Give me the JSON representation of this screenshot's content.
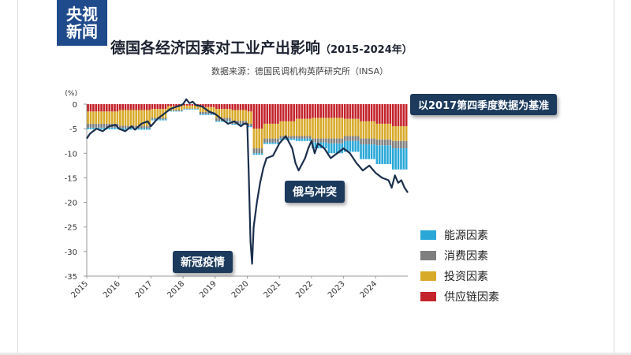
{
  "header": {
    "logo_line1": "央视",
    "logo_line2": "新闻",
    "title_main": "德国各经济因素对工业产出影响",
    "title_years": "（2015-2024年）",
    "source": "数据来源：德国民调机构英萨研究所（INSA）"
  },
  "annotations": {
    "base_note": "以2017第四季度数据为基准",
    "covid": "新冠疫情",
    "ukraine": "俄乌冲突"
  },
  "colors": {
    "energy": "#29a8d8",
    "consumption": "#7f7f7f",
    "investment": "#d8aa2a",
    "supply": "#c4232b",
    "line": "#1b2f4d",
    "callout": "#1b3a5c",
    "logo": "#1f4a8c"
  },
  "chart_data": {
    "type": "bar",
    "unit_label": "(%)",
    "ylim": [
      -35,
      0
    ],
    "yticks": [
      0,
      -5,
      -10,
      -15,
      -20,
      -25,
      -30,
      -35
    ],
    "xlim": [
      2015,
      2025
    ],
    "xticks": [
      "2015",
      "2016",
      "2017",
      "2018",
      "2019",
      "2020",
      "2021",
      "2022",
      "2023",
      "2024"
    ],
    "legend": [
      {
        "name": "能源因素",
        "color": "#29a8d8"
      },
      {
        "name": "消费因素",
        "color": "#7f7f7f"
      },
      {
        "name": "投资因素",
        "color": "#d8aa2a"
      },
      {
        "name": "供应链因素",
        "color": "#c4232b"
      }
    ],
    "legend_position": "bottom-right",
    "stacks": [
      {
        "from": 2015.0,
        "to": 2016.0,
        "supply": 1.5,
        "investment": 2.5,
        "consumption": 0.8,
        "energy": 0.3
      },
      {
        "from": 2016.0,
        "to": 2017.0,
        "supply": 1.2,
        "investment": 3.2,
        "consumption": 0.5,
        "energy": 0.3
      },
      {
        "from": 2017.0,
        "to": 2017.5,
        "supply": 1.0,
        "investment": 1.8,
        "consumption": 0.3,
        "energy": 0.2
      },
      {
        "from": 2017.5,
        "to": 2018.0,
        "supply": 0.4,
        "investment": 0.8,
        "consumption": 0.2,
        "energy": 0.1
      },
      {
        "from": 2018.0,
        "to": 2018.5,
        "supply": 0.3,
        "investment": 0.6,
        "consumption": 0.1,
        "energy": 0.1
      },
      {
        "from": 2018.5,
        "to": 2019.0,
        "supply": 0.6,
        "investment": 1.0,
        "consumption": 0.4,
        "energy": 0.2
      },
      {
        "from": 2019.0,
        "to": 2019.5,
        "supply": 1.0,
        "investment": 1.8,
        "consumption": 0.6,
        "energy": 0.2
      },
      {
        "from": 2019.5,
        "to": 2020.0,
        "supply": 1.2,
        "investment": 2.2,
        "consumption": 0.6,
        "energy": 0.2
      },
      {
        "from": 2020.0,
        "to": 2020.2,
        "supply": 1.5,
        "investment": 2.5,
        "consumption": 0.5,
        "energy": 0.2
      },
      {
        "from": 2020.2,
        "to": 2020.5,
        "supply": 5.0,
        "investment": 4.0,
        "consumption": 1.0,
        "energy": 0.3
      },
      {
        "from": 2020.5,
        "to": 2021.0,
        "supply": 4.0,
        "investment": 3.0,
        "consumption": 0.8,
        "energy": 0.3
      },
      {
        "from": 2021.0,
        "to": 2021.5,
        "supply": 3.5,
        "investment": 3.0,
        "consumption": 0.5,
        "energy": 0.3
      },
      {
        "from": 2021.5,
        "to": 2022.0,
        "supply": 3.0,
        "investment": 3.5,
        "consumption": 0.5,
        "energy": 0.5
      },
      {
        "from": 2022.0,
        "to": 2022.5,
        "supply": 2.8,
        "investment": 4.2,
        "consumption": 0.8,
        "energy": 1.2
      },
      {
        "from": 2022.5,
        "to": 2023.0,
        "supply": 2.8,
        "investment": 4.2,
        "consumption": 1.0,
        "energy": 2.0
      },
      {
        "from": 2023.0,
        "to": 2023.5,
        "supply": 3.0,
        "investment": 3.5,
        "consumption": 1.0,
        "energy": 2.2
      },
      {
        "from": 2023.5,
        "to": 2024.0,
        "supply": 3.5,
        "investment": 3.5,
        "consumption": 1.2,
        "energy": 3.0
      },
      {
        "from": 2024.0,
        "to": 2024.5,
        "supply": 4.0,
        "investment": 3.2,
        "consumption": 1.2,
        "energy": 3.8
      },
      {
        "from": 2024.5,
        "to": 2025.0,
        "supply": 4.5,
        "investment": 3.0,
        "consumption": 1.5,
        "energy": 4.3
      }
    ],
    "line": {
      "x": [
        2015.0,
        2015.1,
        2015.3,
        2015.5,
        2015.7,
        2015.9,
        2016.0,
        2016.2,
        2016.4,
        2016.5,
        2016.7,
        2016.9,
        2017.0,
        2017.2,
        2017.4,
        2017.6,
        2017.8,
        2017.9,
        2018.0,
        2018.1,
        2018.2,
        2018.3,
        2018.4,
        2018.6,
        2018.8,
        2019.0,
        2019.2,
        2019.4,
        2019.6,
        2019.8,
        2019.9,
        2020.0,
        2020.05,
        2020.1,
        2020.15,
        2020.2,
        2020.3,
        2020.4,
        2020.5,
        2020.6,
        2020.8,
        2021.0,
        2021.2,
        2021.4,
        2021.5,
        2021.6,
        2021.8,
        2021.9,
        2022.0,
        2022.1,
        2022.2,
        2022.4,
        2022.6,
        2022.8,
        2023.0,
        2023.2,
        2023.4,
        2023.6,
        2023.8,
        2024.0,
        2024.2,
        2024.4,
        2024.5,
        2024.6,
        2024.7,
        2024.8,
        2024.9,
        2025.0
      ],
      "y": [
        -7.0,
        -6.0,
        -5.0,
        -5.5,
        -4.5,
        -4.2,
        -5.0,
        -5.5,
        -4.5,
        -5.2,
        -4.0,
        -3.5,
        -4.5,
        -3.0,
        -2.0,
        -1.0,
        -0.5,
        -0.3,
        0.0,
        1.0,
        0.2,
        0.5,
        -0.2,
        -0.5,
        -1.5,
        -2.0,
        -3.0,
        -4.0,
        -3.5,
        -4.5,
        -4.0,
        -4.0,
        -15.0,
        -28.0,
        -32.5,
        -25.0,
        -20.0,
        -16.0,
        -13.0,
        -11.0,
        -10.5,
        -8.0,
        -6.5,
        -9.0,
        -12.0,
        -13.5,
        -11.0,
        -9.0,
        -7.5,
        -10.0,
        -8.0,
        -9.0,
        -11.0,
        -10.0,
        -9.0,
        -10.0,
        -12.0,
        -13.5,
        -12.5,
        -14.0,
        -15.0,
        -15.5,
        -17.0,
        -14.5,
        -16.0,
        -15.5,
        -17.0,
        -18.0
      ]
    }
  }
}
